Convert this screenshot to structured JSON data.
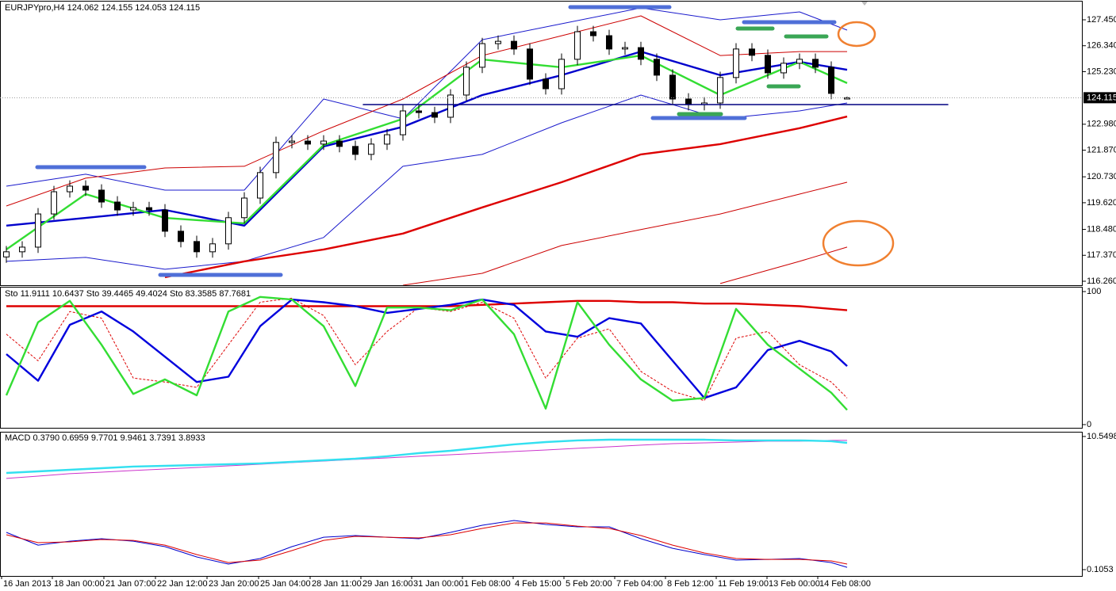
{
  "chart_data": [
    {
      "type": "candlestick",
      "title": "EURJPYpro,H4  124.062 124.155 124.053 124.115",
      "up_color": "#ffffff",
      "down_color": "#000000",
      "open": [
        117.3,
        117.52,
        117.72,
        119.14,
        120.09,
        120.33,
        120.16,
        119.65,
        119.31,
        119.41,
        119.31,
        118.4,
        117.96,
        117.52,
        117.86,
        118.98,
        119.82,
        120.91,
        122.2,
        122.26,
        122.13,
        122.26,
        122.03,
        121.69,
        122.13,
        122.53,
        123.55,
        123.48,
        123.28,
        124.23,
        125.42,
        126.43,
        126.53,
        126.2,
        124.91,
        124.5,
        125.76,
        126.94,
        126.77,
        126.2,
        126.26,
        125.76,
        125.08,
        124.06,
        123.82,
        123.89,
        124.98,
        126.2,
        125.93,
        125.18,
        125.59,
        125.76,
        125.42,
        124.06
      ],
      "high": [
        117.77,
        117.97,
        119.39,
        120.34,
        120.58,
        120.58,
        120.41,
        119.9,
        119.66,
        119.66,
        119.56,
        118.65,
        118.21,
        118.11,
        119.23,
        120.07,
        121.16,
        122.45,
        122.51,
        122.51,
        122.51,
        122.51,
        122.28,
        122.38,
        122.78,
        123.8,
        123.8,
        123.73,
        124.48,
        125.67,
        126.68,
        126.78,
        126.78,
        126.45,
        125.16,
        126.01,
        127.19,
        127.19,
        127.02,
        126.51,
        126.51,
        126.01,
        125.33,
        124.31,
        124.14,
        125.23,
        126.45,
        126.45,
        126.18,
        125.84,
        126.01,
        126.01,
        125.67,
        124.16
      ],
      "low": [
        117.05,
        117.27,
        117.47,
        118.89,
        119.84,
        119.91,
        119.4,
        119.06,
        119.06,
        119.06,
        118.15,
        117.71,
        117.27,
        117.27,
        117.61,
        118.73,
        119.57,
        120.66,
        121.95,
        121.88,
        121.88,
        121.78,
        121.44,
        121.44,
        121.88,
        122.28,
        123.23,
        123.03,
        123.03,
        123.98,
        125.17,
        126.18,
        125.95,
        124.66,
        124.25,
        124.25,
        125.51,
        126.52,
        125.95,
        125.95,
        125.51,
        124.83,
        123.81,
        123.57,
        123.57,
        123.64,
        124.73,
        125.68,
        124.93,
        124.93,
        125.34,
        125.17,
        124.05,
        124.05
      ],
      "close": [
        117.52,
        117.72,
        119.14,
        120.09,
        120.33,
        120.16,
        119.65,
        119.31,
        119.41,
        119.31,
        118.4,
        117.96,
        117.52,
        117.86,
        118.98,
        119.82,
        120.91,
        122.2,
        122.26,
        122.13,
        122.26,
        122.03,
        121.69,
        122.13,
        122.53,
        123.55,
        123.48,
        123.28,
        124.23,
        125.42,
        126.43,
        126.53,
        126.2,
        124.91,
        124.5,
        125.76,
        126.94,
        126.77,
        126.2,
        126.26,
        125.76,
        125.08,
        124.06,
        123.82,
        123.89,
        124.98,
        126.2,
        125.93,
        125.18,
        125.59,
        125.76,
        125.42,
        124.3,
        124.115
      ],
      "lines_x": [
        0,
        5,
        10,
        15,
        20,
        25,
        30,
        35,
        40,
        45,
        50,
        53
      ],
      "lines": [
        {
          "color": "#1a1acc",
          "style": "thin",
          "values": [
            120.33,
            120.84,
            120.16,
            120.16,
            124.06,
            123.21,
            126.6,
            127.28,
            127.96,
            127.45,
            127.79,
            127.01
          ]
        },
        {
          "color": "#1a1acc",
          "style": "thin",
          "values": [
            117.11,
            117.28,
            116.77,
            117.11,
            118.13,
            121.18,
            121.69,
            123.04,
            124.23,
            123.21,
            123.55,
            123.89
          ]
        },
        {
          "color": "#cc0000",
          "style": "thin",
          "values": [
            119.48,
            120.67,
            121.11,
            121.18,
            122.7,
            124.06,
            125.92,
            126.77,
            127.62,
            125.92,
            126.09,
            126.09
          ]
        },
        {
          "color": "#cc0000",
          "style": "thin",
          "values": [
            null,
            null,
            null,
            null,
            null,
            116.09,
            116.6,
            117.79,
            118.47,
            119.14,
            119.99,
            120.5
          ]
        },
        {
          "color": "#cc0000",
          "style": "thin",
          "values": [
            null,
            null,
            null,
            null,
            null,
            null,
            null,
            null,
            null,
            116.16,
            117.11,
            117.72
          ]
        },
        {
          "color": "#dd0000",
          "style": "thick",
          "values": [
            null,
            null,
            116.43,
            117.11,
            117.62,
            118.3,
            119.42,
            120.5,
            121.69,
            122.13,
            122.81,
            123.31
          ]
        },
        {
          "color": "#0000cc",
          "style": "thick",
          "values": [
            118.64,
            118.97,
            119.31,
            118.64,
            122.03,
            122.87,
            124.23,
            125.08,
            126.09,
            125.08,
            125.65,
            125.31
          ]
        },
        {
          "color": "#33dd33",
          "style": "thick",
          "values": [
            117.62,
            119.99,
            118.97,
            118.74,
            122.09,
            123.21,
            125.75,
            125.42,
            125.92,
            124.23,
            125.65,
            124.74
          ]
        }
      ],
      "current_price": 124.115,
      "xlim": [
        -0.4,
        67.85
      ],
      "ylim": [
        116.09,
        128.23
      ],
      "yticks": [
        {
          "value": 127.45,
          "label": "127.450"
        },
        {
          "value": 126.34,
          "label": "126.340"
        },
        {
          "value": 125.23,
          "label": "125.230"
        },
        {
          "value": 122.98,
          "label": "122.980"
        },
        {
          "value": 121.87,
          "label": "121.870"
        },
        {
          "value": 120.73,
          "label": "120.730"
        },
        {
          "value": 119.62,
          "label": "119.620"
        },
        {
          "value": 118.48,
          "label": "118.480"
        },
        {
          "value": 117.37,
          "label": "117.370"
        },
        {
          "value": 116.26,
          "label": "116.260"
        }
      ],
      "xticks": [
        {
          "value": -0.3,
          "label": "16 Jan 2013"
        },
        {
          "value": 2.9,
          "label": "18 Jan 00:00"
        },
        {
          "value": 6.15,
          "label": "21 Jan 07:00"
        },
        {
          "value": 9.4,
          "label": "22 Jan 12:00"
        },
        {
          "value": 12.65,
          "label": "23 Jan 20:00"
        },
        {
          "value": 15.9,
          "label": "25 Jan 04:00"
        },
        {
          "value": 19.15,
          "label": "28 Jan 11:00"
        },
        {
          "value": 22.35,
          "label": "29 Jan 16:00"
        },
        {
          "value": 25.55,
          "label": "31 Jan 00:00"
        },
        {
          "value": 28.75,
          "label": "1 Feb 08:00"
        },
        {
          "value": 31.95,
          "label": "4 Feb 15:00"
        },
        {
          "value": 35.15,
          "label": "5 Feb 20:00"
        },
        {
          "value": 38.35,
          "label": "7 Feb 04:00"
        },
        {
          "value": 41.55,
          "label": "8 Feb 12:00"
        },
        {
          "value": 44.75,
          "label": "11 Feb 19:00"
        },
        {
          "value": 47.95,
          "label": "13 Feb 00:00"
        },
        {
          "value": 51.15,
          "label": "14 Feb 08:00"
        }
      ]
    },
    {
      "type": "line",
      "title": "Sto 11.9111 10.6437  Sto 39.4465 49.4024  Sto 83.3585 87.7681",
      "x": [
        0,
        2,
        4,
        6,
        8,
        10,
        12,
        14,
        16,
        18,
        20,
        22,
        24,
        26,
        28,
        30,
        32,
        34,
        36,
        38,
        40,
        42,
        44,
        46,
        48,
        50,
        52,
        53
      ],
      "series": [
        {
          "color": "#dd0000",
          "style": "thick",
          "values": [
            89,
            89,
            89,
            89,
            89,
            89,
            89,
            89,
            89,
            89,
            89,
            89,
            89,
            89,
            89,
            90,
            91,
            92,
            93,
            93,
            92,
            92,
            91,
            91,
            90,
            89,
            87,
            86
          ]
        },
        {
          "color": "#dd0000",
          "style": "dashed",
          "values": [
            68,
            48,
            85,
            80,
            35,
            32,
            28,
            60,
            92,
            95,
            82,
            45,
            70,
            88,
            85,
            92,
            80,
            35,
            65,
            72,
            40,
            25,
            18,
            65,
            70,
            45,
            32,
            20
          ]
        },
        {
          "color": "#0000dd",
          "style": "thick",
          "values": [
            53,
            33,
            75,
            85,
            70,
            51,
            32,
            36,
            74,
            94,
            92,
            89,
            84,
            87,
            90,
            94,
            90,
            70,
            66,
            80,
            76,
            48,
            20,
            28,
            56,
            63,
            55,
            44
          ]
        },
        {
          "color": "#33dd33",
          "style": "thick",
          "values": [
            22,
            77,
            93,
            60,
            23,
            34,
            22,
            85,
            96,
            94,
            74,
            29,
            88,
            88,
            86,
            94,
            68,
            12,
            92,
            60,
            34,
            18,
            20,
            87,
            60,
            42,
            24,
            11
          ]
        }
      ],
      "ylim": [
        -2.4,
        103.6
      ],
      "yticks": [
        0,
        100
      ]
    },
    {
      "type": "line",
      "title": "MACD 0.3790 0.6959  9.7701 9.9461  3.7391 3.8933",
      "x": [
        0,
        2,
        4,
        6,
        8,
        10,
        12,
        14,
        16,
        18,
        20,
        22,
        24,
        26,
        28,
        30,
        32,
        34,
        36,
        38,
        40,
        42,
        44,
        46,
        48,
        50,
        52,
        53
      ],
      "series": [
        {
          "color": "#cc33cc",
          "style": "thin",
          "values": [
            7.26,
            7.44,
            7.63,
            7.75,
            7.88,
            8.0,
            8.12,
            8.25,
            8.37,
            8.5,
            8.62,
            8.75,
            8.87,
            9.0,
            9.12,
            9.24,
            9.37,
            9.49,
            9.62,
            9.74,
            9.87,
            9.99,
            10.05,
            10.11,
            10.18,
            10.18,
            10.24,
            10.24
          ]
        },
        {
          "color": "#33e0f0",
          "style": "thick",
          "values": [
            7.69,
            7.81,
            7.94,
            8.06,
            8.19,
            8.25,
            8.31,
            8.37,
            8.44,
            8.56,
            8.68,
            8.81,
            9.0,
            9.24,
            9.43,
            9.68,
            9.93,
            10.11,
            10.24,
            10.3,
            10.3,
            10.3,
            10.3,
            10.24,
            10.24,
            10.24,
            10.18,
            10.05
          ]
        },
        {
          "color": "#0000cc",
          "style": "thin",
          "values": [
            3.03,
            2.03,
            2.34,
            2.53,
            2.34,
            1.91,
            1.1,
            0.54,
            0.98,
            1.91,
            2.65,
            2.78,
            2.65,
            2.53,
            3.03,
            3.59,
            3.96,
            3.65,
            3.46,
            3.46,
            2.53,
            1.78,
            1.29,
            0.85,
            0.91,
            0.98,
            0.66,
            0.29
          ]
        },
        {
          "color": "#dd0000",
          "style": "thin",
          "values": [
            2.84,
            2.22,
            2.28,
            2.47,
            2.4,
            2.03,
            1.29,
            0.66,
            0.85,
            1.6,
            2.4,
            2.72,
            2.65,
            2.59,
            2.84,
            3.34,
            3.77,
            3.77,
            3.52,
            3.34,
            2.78,
            2.03,
            1.41,
            0.98,
            0.91,
            0.91,
            0.79,
            0.54
          ]
        }
      ],
      "ylim": [
        -0.39,
        10.92
      ],
      "yticks": [
        10.5498,
        0.1053
      ]
    }
  ]
}
